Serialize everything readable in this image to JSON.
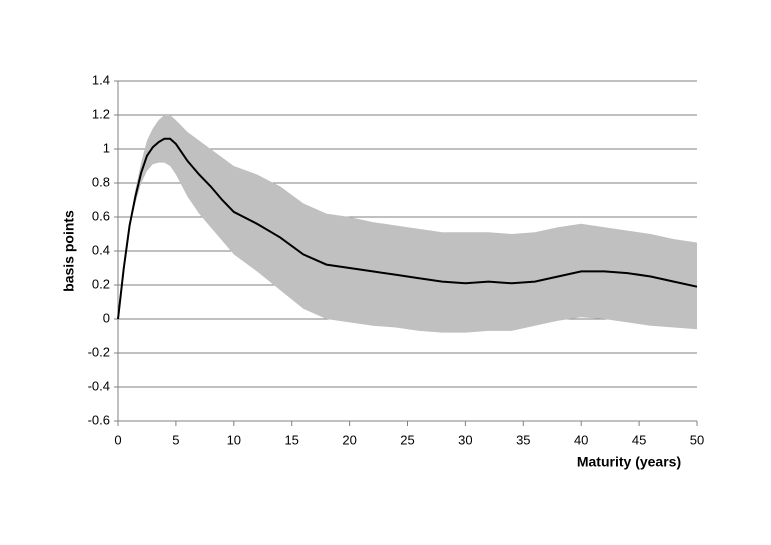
{
  "chart_data": {
    "type": "line",
    "x": [
      0,
      0.5,
      1,
      1.5,
      2,
      2.5,
      3,
      3.5,
      4,
      4.5,
      5,
      6,
      7,
      8,
      9,
      10,
      12,
      14,
      16,
      18,
      20,
      22,
      24,
      26,
      28,
      30,
      32,
      34,
      36,
      38,
      40,
      42,
      44,
      46,
      48,
      50
    ],
    "values": [
      0,
      0.3,
      0.55,
      0.72,
      0.86,
      0.96,
      1.01,
      1.04,
      1.06,
      1.06,
      1.03,
      0.93,
      0.85,
      0.78,
      0.7,
      0.63,
      0.56,
      0.48,
      0.38,
      0.32,
      0.3,
      0.28,
      0.26,
      0.24,
      0.22,
      0.21,
      0.22,
      0.21,
      0.22,
      0.25,
      0.28,
      0.28,
      0.27,
      0.25,
      0.22,
      0.19
    ],
    "color": "#000000",
    "band": {
      "color": "#c0c0c0",
      "upper": [
        0,
        0.3,
        0.56,
        0.76,
        0.92,
        1.05,
        1.12,
        1.17,
        1.2,
        1.2,
        1.17,
        1.1,
        1.05,
        1.0,
        0.95,
        0.9,
        0.85,
        0.78,
        0.68,
        0.62,
        0.6,
        0.57,
        0.55,
        0.53,
        0.51,
        0.51,
        0.51,
        0.5,
        0.51,
        0.54,
        0.56,
        0.54,
        0.52,
        0.5,
        0.47,
        0.45
      ],
      "lower": [
        0,
        0.3,
        0.54,
        0.68,
        0.8,
        0.87,
        0.91,
        0.92,
        0.92,
        0.9,
        0.85,
        0.72,
        0.62,
        0.54,
        0.46,
        0.38,
        0.28,
        0.17,
        0.06,
        0.0,
        -0.02,
        -0.04,
        -0.05,
        -0.07,
        -0.08,
        -0.08,
        -0.07,
        -0.07,
        -0.04,
        -0.01,
        0.01,
        0.0,
        -0.02,
        -0.04,
        -0.05,
        -0.06
      ]
    },
    "xlabel": "Maturity (years)",
    "ylabel": "basis points",
    "xlim": [
      0,
      50
    ],
    "xticks": [
      0,
      5,
      10,
      15,
      20,
      25,
      30,
      35,
      40,
      45,
      50
    ],
    "ylim": [
      -0.6,
      1.4
    ],
    "yticks": [
      -0.6,
      -0.4,
      -0.2,
      0,
      0.2,
      0.4,
      0.6,
      0.8,
      1,
      1.2,
      1.4
    ],
    "grid": true
  }
}
